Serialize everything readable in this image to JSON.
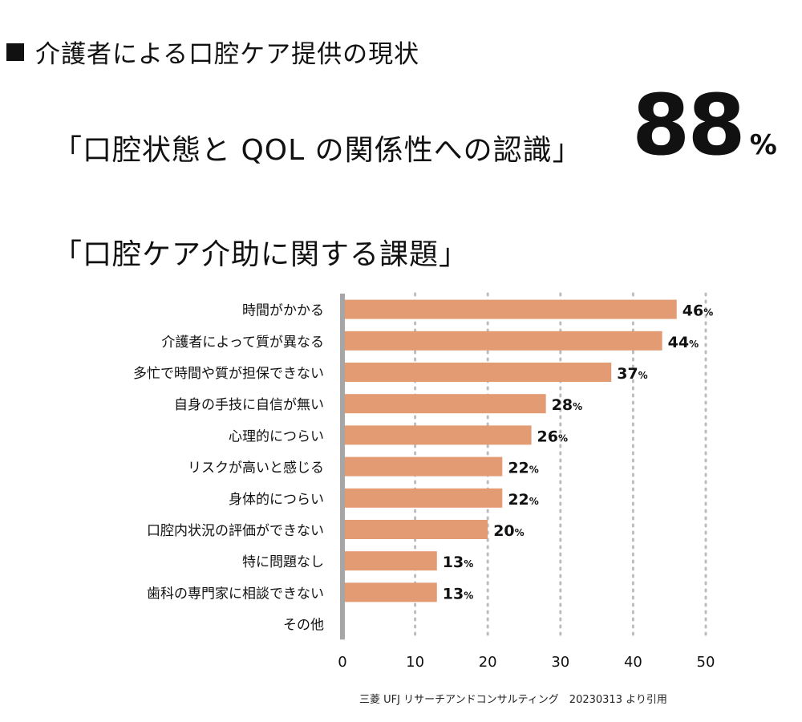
{
  "heading": {
    "marker": "■",
    "title": "介護者による口腔ケア提供の現状"
  },
  "highlight": {
    "quote": "「口腔状態と QOL の関係性への認識」",
    "value": "88",
    "unit": "%"
  },
  "chart_title": "「口腔ケア介助に関する課題」",
  "chart_data": {
    "type": "bar",
    "orientation": "horizontal",
    "categories": [
      "時間がかかる",
      "介護者によって質が異なる",
      "多忙で時間や質が担保できない",
      "自身の手技に自信が無い",
      "心理的につらい",
      "リスクが高いと感じる",
      "身体的につらい",
      "口腔内状況の評価ができない",
      "特に問題なし",
      "歯科の専門家に相談できない",
      "その他"
    ],
    "values": [
      46,
      44,
      37,
      28,
      26,
      22,
      22,
      20,
      13,
      13,
      null
    ],
    "value_labels": [
      "46",
      "44",
      "37",
      "28",
      "26",
      "22",
      "22",
      "20",
      "13",
      "13",
      ""
    ],
    "value_unit": "%",
    "xlim": [
      0,
      50
    ],
    "xticks": [
      "0",
      "10",
      "20",
      "30",
      "40",
      "50"
    ],
    "xlabel": "",
    "ylabel": "",
    "grid": "vertical dotted",
    "bar_color": "#e39b73",
    "axis_color": "#a6a6a6",
    "grid_color": "#bdbdbd"
  },
  "source": "三菱 UFJ リサーチアンドコンサルティング　20230313 より引用"
}
